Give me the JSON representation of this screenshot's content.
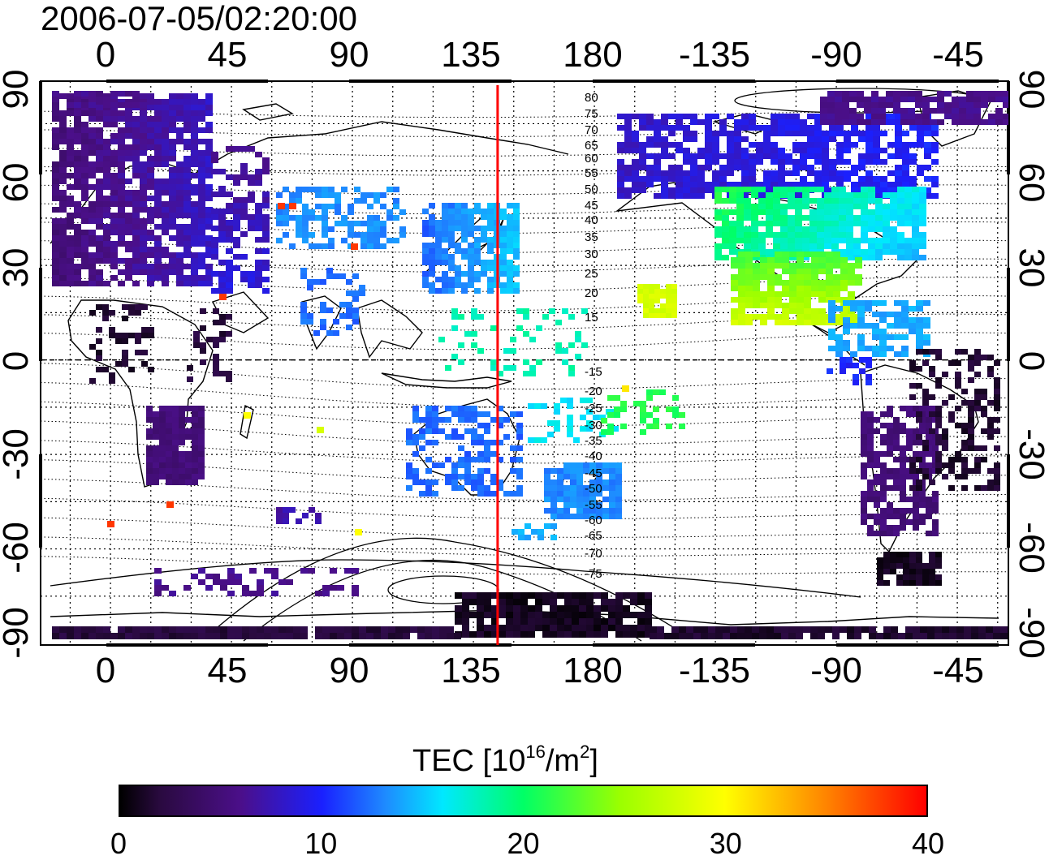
{
  "title": "2006-07-05/02:20:00",
  "map": {
    "projection": "equirectangular",
    "lon_center": 150,
    "top_lon_ticks": [
      "0",
      "45",
      "90",
      "135",
      "180",
      "-135",
      "-90",
      "-45"
    ],
    "bottom_lon_ticks": [
      "0",
      "45",
      "90",
      "135",
      "180",
      "-135",
      "-90",
      "-45"
    ],
    "left_lat_ticks": [
      "90",
      "60",
      "30",
      "0",
      "-30",
      "-60",
      "-90"
    ],
    "right_lat_ticks": [
      "90",
      "60",
      "30",
      "0",
      "-30",
      "-60",
      "-90"
    ],
    "meridian_line": {
      "lon": 144,
      "color": "#ff0000"
    },
    "contour_labels": [
      "80",
      "75",
      "70",
      "65",
      "60",
      "55",
      "50",
      "45",
      "40",
      "35",
      "30",
      "25",
      "20",
      "15",
      "-15",
      "-20",
      "-25",
      "-30",
      "-35",
      "-40",
      "-45",
      "-50",
      "-55",
      "-60",
      "-65",
      "-70",
      "-75"
    ]
  },
  "colorbar": {
    "label": "TEC [10",
    "label_exp": "16",
    "label_unit": "/m",
    "label_unit_exp": "2",
    "label_end": "]",
    "ticks": [
      "0",
      "10",
      "20",
      "30",
      "40"
    ],
    "range": [
      0,
      40
    ],
    "colors": [
      "#000000",
      "#4b0f8a",
      "#1a20ff",
      "#00e8ff",
      "#00ff66",
      "#ffff00",
      "#ff8a00",
      "#ff0000"
    ]
  }
}
